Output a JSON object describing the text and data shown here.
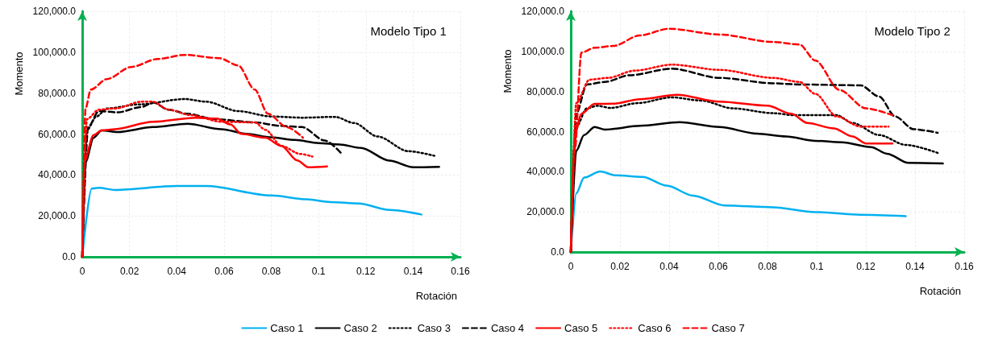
{
  "chart_data": [
    {
      "type": "line",
      "title": "Modelo Tipo 1",
      "xlabel": "Rotación",
      "ylabel": "Momento",
      "grid": true,
      "legend": "bottom",
      "xlim": [
        0,
        0.16
      ],
      "xticks": [
        0,
        0.02,
        0.04,
        0.06,
        0.08,
        0.1,
        0.12,
        0.14,
        0.16
      ],
      "ylim": [
        0,
        120000
      ],
      "yticks": [
        {
          "value": 0,
          "label": "0.0"
        },
        {
          "value": 20000,
          "label": "20,000.0"
        },
        {
          "value": 40000,
          "label": "40,000.0"
        },
        {
          "value": 60000,
          "label": "60,000.0"
        },
        {
          "value": 80000,
          "label": "80,000.0"
        },
        {
          "value": 100000,
          "label": "100,000.0"
        },
        {
          "value": 120000,
          "label": "120,000.0"
        }
      ],
      "series": [
        {
          "name": "Caso 1",
          "color": "#00b0f0",
          "line_style": "solid",
          "x": [
            0,
            0.004,
            0.007,
            0.014,
            0.04,
            0.0525,
            0.08,
            0.095,
            0.105,
            0.117,
            0.13,
            0.1435
          ],
          "values": [
            0,
            33300,
            33700,
            32700,
            34600,
            34600,
            30000,
            28100,
            26800,
            26100,
            22900,
            20700
          ]
        },
        {
          "name": "Caso 2",
          "color": "#000000",
          "line_style": "solid",
          "x": [
            0,
            0.0014,
            0.0048,
            0.0082,
            0.015,
            0.03,
            0.0445,
            0.059,
            0.0695,
            0.08,
            0.09,
            0.1,
            0.109,
            0.118,
            0.13,
            0.14,
            0.151
          ],
          "values": [
            0,
            46400,
            58200,
            61800,
            61000,
            63400,
            65000,
            62400,
            60100,
            58400,
            57100,
            55600,
            54900,
            53200,
            47000,
            43800,
            44000
          ]
        },
        {
          "name": "Caso 3",
          "color": "#000000",
          "line_style": "dotted",
          "x": [
            0,
            0.002,
            0.006,
            0.0105,
            0.024,
            0.0434,
            0.0525,
            0.066,
            0.08,
            0.093,
            0.107,
            0.115,
            0.125,
            0.138,
            0.149
          ],
          "values": [
            0,
            62000,
            68600,
            72500,
            74500,
            77100,
            75800,
            71200,
            68600,
            68000,
            68400,
            65400,
            58800,
            51600,
            49400
          ]
        },
        {
          "name": "Caso 4",
          "color": "#000000",
          "line_style": "dashed",
          "x": [
            0,
            0.0025,
            0.007,
            0.015,
            0.025,
            0.03,
            0.0366,
            0.0445,
            0.056,
            0.073,
            0.084,
            0.093,
            0.1025,
            0.11
          ],
          "values": [
            0,
            63400,
            71200,
            70600,
            73200,
            75400,
            71900,
            69900,
            67300,
            65700,
            64000,
            63400,
            56900,
            50100
          ]
        },
        {
          "name": "Caso 5",
          "color": "#ff0000",
          "line_style": "solid",
          "x": [
            0,
            0.0008,
            0.0048,
            0.0082,
            0.0139,
            0.0298,
            0.048,
            0.057,
            0.0627,
            0.0673,
            0.0775,
            0.0843,
            0.091,
            0.0957,
            0.1036
          ],
          "values": [
            0,
            46400,
            59500,
            61800,
            62400,
            66000,
            68000,
            67600,
            64700,
            60100,
            58200,
            54200,
            47100,
            43800,
            44200
          ]
        },
        {
          "name": "Caso 6",
          "color": "#ff0000",
          "line_style": "dotted",
          "x": [
            0,
            0.002,
            0.007,
            0.0139,
            0.025,
            0.0298,
            0.0366,
            0.0457,
            0.059,
            0.073,
            0.0775,
            0.0843,
            0.0922,
            0.0974
          ],
          "values": [
            0,
            67300,
            71900,
            72500,
            75800,
            75800,
            71900,
            69300,
            66000,
            65700,
            62100,
            54200,
            50300,
            49000
          ]
        },
        {
          "name": "Caso 7",
          "color": "#ff0000",
          "line_style": "dashed",
          "x": [
            0,
            0.0014,
            0.0036,
            0.0105,
            0.0207,
            0.032,
            0.0434,
            0.058,
            0.066,
            0.073,
            0.0786,
            0.0866,
            0.0934
          ],
          "values": [
            0,
            72500,
            81700,
            86900,
            92800,
            96700,
            98700,
            97100,
            93500,
            81700,
            69900,
            63400,
            58200
          ]
        }
      ]
    },
    {
      "type": "line",
      "title": "Modelo Tipo 2",
      "xlabel": "Rotación",
      "ylabel": "Momento",
      "grid": true,
      "xlim": [
        0,
        0.16
      ],
      "xticks": [
        0,
        0.02,
        0.04,
        0.06,
        0.08,
        0.1,
        0.12,
        0.14,
        0.16
      ],
      "ylim": [
        0,
        120000
      ],
      "yticks": [
        {
          "value": 0,
          "label": "0.0"
        },
        {
          "value": 20000,
          "label": "20,000.0"
        },
        {
          "value": 40000,
          "label": "40,000.0"
        },
        {
          "value": 60000,
          "label": "60,000.0"
        },
        {
          "value": 80000,
          "label": "80,000.0"
        },
        {
          "value": 100000,
          "label": "100,000.0"
        },
        {
          "value": 120000,
          "label": "120,000.0"
        }
      ],
      "series": [
        {
          "name": "Caso 1",
          "color": "#00b0f0",
          "line_style": "solid",
          "x": [
            0,
            0.0022,
            0.0054,
            0.0119,
            0.0184,
            0.0292,
            0.039,
            0.0497,
            0.0627,
            0.0822,
            0.0995,
            0.1178,
            0.1362
          ],
          "values": [
            0,
            29200,
            37100,
            40100,
            38200,
            37400,
            33100,
            28100,
            23200,
            22300,
            19900,
            18600,
            17900
          ]
        },
        {
          "name": "Caso 2",
          "color": "#000000",
          "line_style": "solid",
          "x": [
            0,
            0.0022,
            0.0054,
            0.0097,
            0.014,
            0.0281,
            0.0443,
            0.0605,
            0.0757,
            0.0876,
            0.0995,
            0.1103,
            0.1222,
            0.1286,
            0.1373,
            0.1513
          ],
          "values": [
            0,
            50400,
            58300,
            62300,
            61000,
            62900,
            64700,
            62300,
            59000,
            57600,
            55400,
            54700,
            52300,
            49000,
            44400,
            44100
          ]
        },
        {
          "name": "Caso 3",
          "color": "#000000",
          "line_style": "dotted",
          "x": [
            0,
            0.0022,
            0.0065,
            0.0108,
            0.0162,
            0.027,
            0.0411,
            0.053,
            0.0659,
            0.0822,
            0.0908,
            0.1081,
            0.1146,
            0.1254,
            0.1362,
            0.1492
          ],
          "values": [
            0,
            62300,
            71600,
            72900,
            71800,
            74200,
            77100,
            75500,
            71600,
            69200,
            68200,
            68200,
            64300,
            58300,
            53400,
            49400
          ]
        },
        {
          "name": "Caso 4",
          "color": "#000000",
          "line_style": "dashed",
          "x": [
            0,
            0.0022,
            0.0065,
            0.014,
            0.0238,
            0.0411,
            0.0605,
            0.0822,
            0.093,
            0.1178,
            0.1254,
            0.1319,
            0.1394,
            0.1492
          ],
          "values": [
            0,
            68900,
            83500,
            84800,
            88100,
            91400,
            86800,
            84100,
            83500,
            83100,
            77500,
            67600,
            61200,
            59400
          ]
        },
        {
          "name": "Caso 5",
          "color": "#ff0000",
          "line_style": "solid",
          "x": [
            0,
            0.0016,
            0.0043,
            0.0097,
            0.0173,
            0.0281,
            0.0432,
            0.0605,
            0.08,
            0.0897,
            0.0962,
            0.107,
            0.1146,
            0.12,
            0.1308
          ],
          "values": [
            0,
            58300,
            68900,
            73800,
            73900,
            76200,
            78400,
            74900,
            72900,
            68900,
            64300,
            61600,
            57600,
            54100,
            54100
          ]
        },
        {
          "name": "Caso 6",
          "color": "#ff0000",
          "line_style": "dotted",
          "x": [
            0,
            0.0022,
            0.0076,
            0.0151,
            0.0259,
            0.0411,
            0.0605,
            0.0822,
            0.093,
            0.0995,
            0.1081,
            0.1178,
            0.1292
          ],
          "values": [
            0,
            74200,
            85900,
            86800,
            90400,
            93400,
            90800,
            86800,
            84800,
            78800,
            67600,
            62500,
            62500
          ]
        },
        {
          "name": "Caso 7",
          "color": "#ff0000",
          "line_style": "dashed",
          "x": [
            0,
            0.0016,
            0.0043,
            0.0097,
            0.0173,
            0.0281,
            0.04,
            0.0605,
            0.0822,
            0.093,
            0.0995,
            0.1092,
            0.12,
            0.1308
          ],
          "values": [
            0,
            50400,
            99400,
            101800,
            102700,
            108000,
            111300,
            108400,
            104700,
            103400,
            95400,
            80800,
            71600,
            68200
          ]
        }
      ]
    }
  ]
}
